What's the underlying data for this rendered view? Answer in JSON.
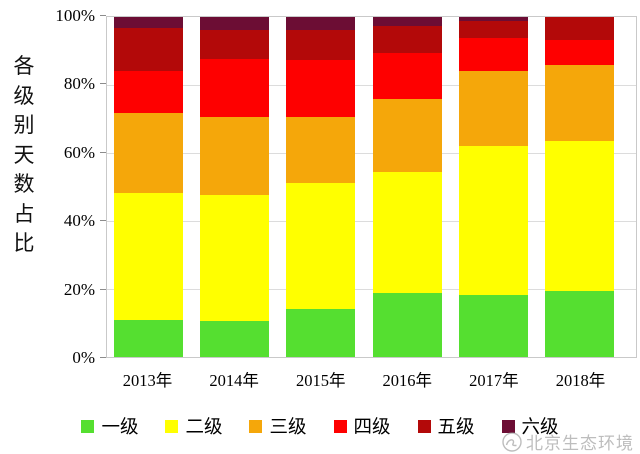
{
  "y_axis_title": "各级别天数占比",
  "watermark": {
    "text": "北京生态环境"
  },
  "chart_data": {
    "type": "bar",
    "stacked": true,
    "percent": true,
    "title": "",
    "ylabel": "各级别天数占比",
    "xlabel": "",
    "ylim": [
      0,
      100
    ],
    "yticks": [
      0,
      20,
      40,
      60,
      80,
      100
    ],
    "ytick_labels": [
      "0%",
      "20%",
      "40%",
      "60%",
      "80%",
      "100%"
    ],
    "grid": true,
    "legend_position": "bottom",
    "categories": [
      "2013年",
      "2014年",
      "2015年",
      "2016年",
      "2017年",
      "2018年"
    ],
    "series": [
      {
        "name": "一级",
        "color": "#55DF30",
        "values": [
          11.0,
          10.7,
          14.1,
          18.8,
          18.2,
          19.5
        ]
      },
      {
        "name": "二级",
        "color": "#FFFF00",
        "values": [
          37.3,
          36.9,
          37.0,
          35.6,
          43.9,
          44.0
        ]
      },
      {
        "name": "三级",
        "color": "#F5A70A",
        "values": [
          23.6,
          23.1,
          19.6,
          21.6,
          22.0,
          22.3
        ]
      },
      {
        "name": "四级",
        "color": "#FE0000",
        "values": [
          12.2,
          17.0,
          16.8,
          13.5,
          9.6,
          7.4
        ]
      },
      {
        "name": "五级",
        "color": "#B30909",
        "values": [
          12.7,
          8.4,
          8.8,
          8.0,
          5.0,
          6.8
        ]
      },
      {
        "name": "六级",
        "color": "#6C0D34",
        "values": [
          3.2,
          3.9,
          3.7,
          2.5,
          1.3,
          0.0
        ]
      }
    ]
  }
}
